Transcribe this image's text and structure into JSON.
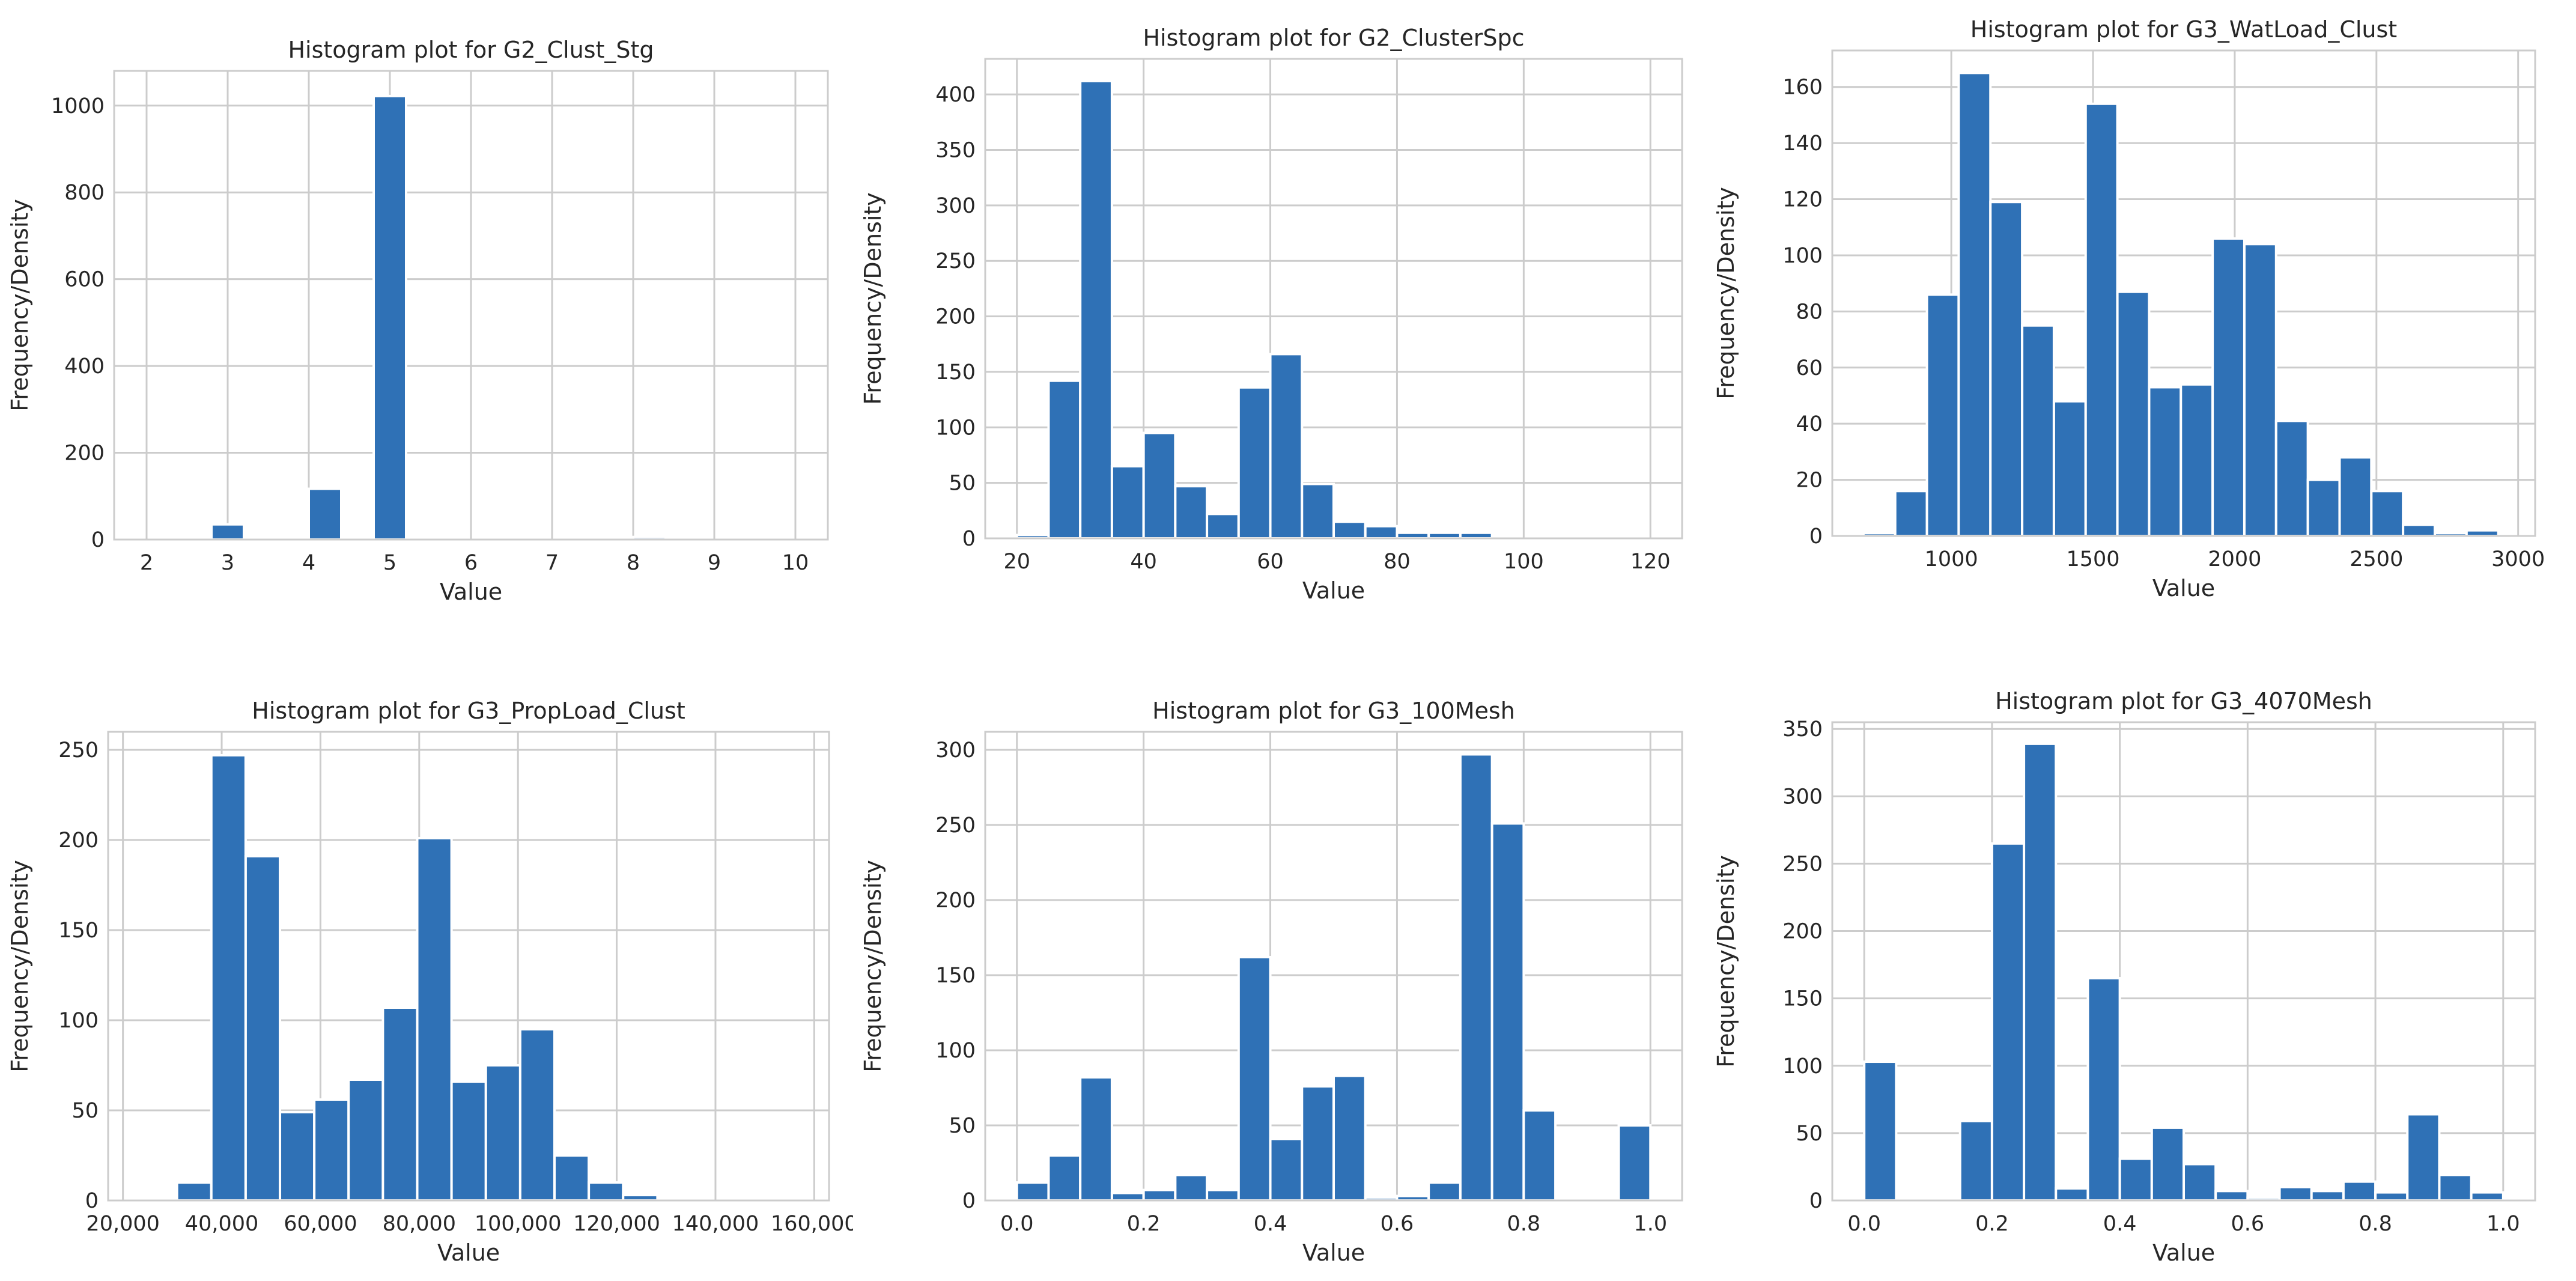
{
  "style": {
    "bar_color": "#2f71b6",
    "grid_color": "#cccccc"
  },
  "chart_data": [
    {
      "type": "bar",
      "title": "Histogram plot for G2_Clust_Stg",
      "xlabel": "Value",
      "ylabel": "Frequency/Density",
      "xlim": [
        1.6,
        10.4
      ],
      "ylim": [
        0,
        1080
      ],
      "xticks": [
        2,
        3,
        4,
        5,
        6,
        7,
        8,
        9,
        10
      ],
      "xtick_labels": [
        "2",
        "3",
        "4",
        "5",
        "6",
        "7",
        "8",
        "9",
        "10"
      ],
      "yticks": [
        0,
        200,
        400,
        600,
        800,
        1000
      ],
      "ytick_labels": [
        "0",
        "200",
        "400",
        "600",
        "800",
        "1000"
      ],
      "bin_edges": [
        2,
        2.4,
        2.8,
        3.2,
        3.6,
        4,
        4.4,
        4.8,
        5.2,
        5.6,
        6,
        6.4,
        6.8,
        7.2,
        7.6,
        8,
        8.4,
        8.8,
        9.2,
        9.6,
        10
      ],
      "values": [
        0,
        0,
        35,
        0,
        0,
        117,
        0,
        1022,
        0,
        0,
        0,
        0,
        0,
        0,
        0,
        6,
        0,
        0,
        0,
        0
      ]
    },
    {
      "type": "bar",
      "title": "Histogram plot for G2_ClusterSpc",
      "xlabel": "Value",
      "ylabel": "Frequency/Density",
      "xlim": [
        15,
        125
      ],
      "ylim": [
        0,
        432
      ],
      "xticks": [
        20,
        40,
        60,
        80,
        100,
        120
      ],
      "xtick_labels": [
        "20",
        "40",
        "60",
        "80",
        "100",
        "120"
      ],
      "yticks": [
        0,
        50,
        100,
        150,
        200,
        250,
        300,
        350,
        400
      ],
      "ytick_labels": [
        "0",
        "50",
        "100",
        "150",
        "200",
        "250",
        "300",
        "350",
        "400"
      ],
      "bin_edges": [
        20,
        25,
        30,
        35,
        40,
        45,
        50,
        55,
        60,
        65,
        70,
        75,
        80,
        85,
        90,
        95,
        100,
        105,
        110,
        115,
        120
      ],
      "values": [
        3,
        142,
        412,
        65,
        95,
        47,
        22,
        136,
        166,
        49,
        15,
        11,
        5,
        5,
        5,
        0,
        0,
        0,
        0,
        0
      ]
    },
    {
      "type": "bar",
      "title": "Histogram plot for G3_WatLoad_Clust",
      "xlabel": "Value",
      "ylabel": "Frequency/Density",
      "xlim": [
        580,
        3060
      ],
      "ylim": [
        0,
        173
      ],
      "xticks": [
        1000,
        1500,
        2000,
        2500,
        3000
      ],
      "xtick_labels": [
        "1000",
        "1500",
        "2000",
        "2500",
        "3000"
      ],
      "yticks": [
        0,
        20,
        40,
        60,
        80,
        100,
        120,
        140,
        160
      ],
      "ytick_labels": [
        "0",
        "20",
        "40",
        "60",
        "80",
        "100",
        "120",
        "140",
        "160"
      ],
      "bin_edges": [
        690,
        802,
        914,
        1026,
        1138,
        1250,
        1362,
        1474,
        1586,
        1698,
        1810,
        1922,
        2034,
        2146,
        2258,
        2370,
        2482,
        2594,
        2706,
        2818,
        2930
      ],
      "values": [
        1,
        16,
        86,
        165,
        119,
        75,
        48,
        154,
        87,
        53,
        54,
        106,
        104,
        41,
        20,
        28,
        16,
        4,
        1,
        2
      ]
    },
    {
      "type": "bar",
      "title": "Histogram plot for G3_PropLoad_Clust",
      "xlabel": "Value",
      "ylabel": "Frequency/Density",
      "xlim": [
        17000,
        163000
      ],
      "ylim": [
        0,
        260
      ],
      "xticks": [
        20000,
        40000,
        60000,
        80000,
        100000,
        120000,
        140000,
        160000
      ],
      "xtick_labels": [
        "20,000",
        "40,000",
        "60,000",
        "80,000",
        "100,000",
        "120,000",
        "140,000",
        "160,000"
      ],
      "yticks": [
        0,
        50,
        100,
        150,
        200,
        250
      ],
      "ytick_labels": [
        "0",
        "50",
        "100",
        "150",
        "200",
        "250"
      ],
      "bin_edges": [
        24000,
        30950,
        37900,
        44850,
        51800,
        58750,
        65700,
        72650,
        79600,
        86550,
        93500,
        100450,
        107400,
        114350,
        121300,
        128250,
        135200,
        142150,
        149100,
        156050,
        163000
      ],
      "values": [
        0,
        10,
        247,
        191,
        49,
        56,
        67,
        107,
        201,
        66,
        75,
        95,
        25,
        10,
        3,
        0,
        0,
        0,
        0,
        0
      ]
    },
    {
      "type": "bar",
      "title": "Histogram plot for G3_100Mesh",
      "xlabel": "Value",
      "ylabel": "Frequency/Density",
      "xlim": [
        -0.05,
        1.05
      ],
      "ylim": [
        0,
        312
      ],
      "xticks": [
        0,
        0.2,
        0.4,
        0.6,
        0.8,
        1
      ],
      "xtick_labels": [
        "0.0",
        "0.2",
        "0.4",
        "0.6",
        "0.8",
        "1.0"
      ],
      "yticks": [
        0,
        50,
        100,
        150,
        200,
        250,
        300
      ],
      "ytick_labels": [
        "0",
        "50",
        "100",
        "150",
        "200",
        "250",
        "300"
      ],
      "bin_edges": [
        0,
        0.05,
        0.1,
        0.15,
        0.2,
        0.25,
        0.3,
        0.35,
        0.4,
        0.45,
        0.5,
        0.55,
        0.6,
        0.65,
        0.7,
        0.75,
        0.8,
        0.85,
        0.9,
        0.95,
        1.0
      ],
      "values": [
        12,
        30,
        82,
        5,
        7,
        17,
        7,
        162,
        41,
        76,
        83,
        2,
        3,
        12,
        297,
        251,
        60,
        0,
        0,
        50
      ]
    },
    {
      "type": "bar",
      "title": "Histogram plot for G3_4070Mesh",
      "xlabel": "Value",
      "ylabel": "Frequency/Density",
      "xlim": [
        -0.05,
        1.05
      ],
      "ylim": [
        0,
        355
      ],
      "xticks": [
        0,
        0.2,
        0.4,
        0.6,
        0.8,
        1
      ],
      "xtick_labels": [
        "0.0",
        "0.2",
        "0.4",
        "0.6",
        "0.8",
        "1.0"
      ],
      "yticks": [
        0,
        50,
        100,
        150,
        200,
        250,
        300,
        350
      ],
      "ytick_labels": [
        "0",
        "50",
        "100",
        "150",
        "200",
        "250",
        "300",
        "350"
      ],
      "bin_edges": [
        0,
        0.05,
        0.1,
        0.15,
        0.2,
        0.25,
        0.3,
        0.35,
        0.4,
        0.45,
        0.5,
        0.55,
        0.6,
        0.65,
        0.7,
        0.75,
        0.8,
        0.85,
        0.9,
        0.95,
        1.0
      ],
      "values": [
        103,
        0,
        0,
        59,
        265,
        339,
        9,
        165,
        31,
        54,
        27,
        7,
        2,
        10,
        7,
        14,
        6,
        64,
        19,
        6
      ]
    }
  ]
}
